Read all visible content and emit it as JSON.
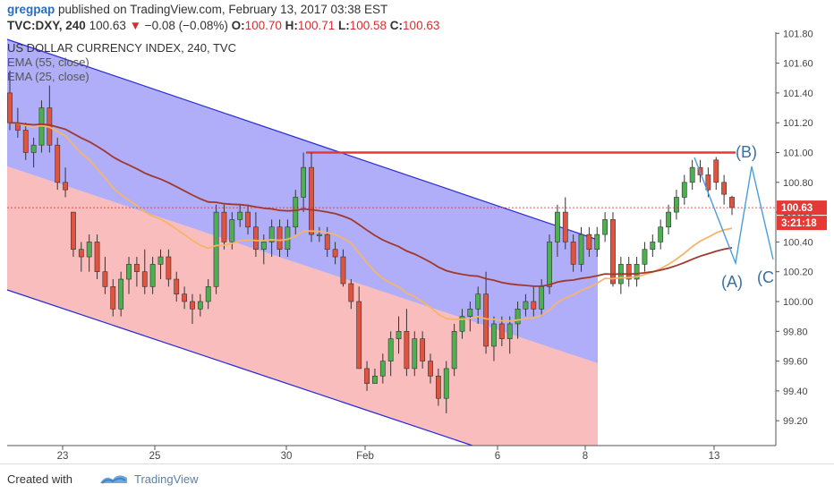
{
  "header": {
    "author": "gregpap",
    "published": "published on TradingView.com, February 13, 2017 03:38 EST",
    "symbol": "TVC:DXY, 240",
    "last": "100.63",
    "change": "−0.08 (−0.08%)",
    "o_label": "O:",
    "o_val": "100.70",
    "h_label": "H:",
    "h_val": "100.71",
    "l_label": "L:",
    "l_val": "100.58",
    "c_label": "C:",
    "c_val": "100.63"
  },
  "legend": {
    "title": "US DOLLAR CURRENCY INDEX, 240, TVC",
    "ema55": "EMA (55, close)",
    "ema25": "EMA (25, close)"
  },
  "footer": {
    "created": "Created with",
    "brand": "TradingView"
  },
  "colors": {
    "up": "#4caf50",
    "down": "#e0533f",
    "ema55": "#a0382e",
    "ema25": "#f5b46b",
    "channel_blue": "#8f8cf5",
    "channel_red": "#f7a1a1",
    "resistance": "#e53935",
    "wave": "#4a9ed8"
  },
  "chart_data": {
    "type": "candlestick",
    "title": "US DOLLAR CURRENCY INDEX, 240, TVC",
    "ylim": [
      99.0,
      101.8
    ],
    "y_ticks": [
      "101.80",
      "101.60",
      "101.40",
      "101.20",
      "101.00",
      "100.80",
      "100.60",
      "100.40",
      "100.20",
      "100.00",
      "99.80",
      "99.60",
      "99.40",
      "99.20"
    ],
    "x_ticks": [
      "23",
      "25",
      "30",
      "Feb",
      "6",
      "8",
      "13"
    ],
    "price_label": "100.63",
    "countdown_label": "3:21:18",
    "ema_legend": [
      "EMA (55, close)",
      "EMA (25, close)"
    ],
    "resistance_level": 101.0,
    "annotations": [
      "(B)",
      "(A)",
      "(C"
    ],
    "candles": [
      [
        101.4,
        101.55,
        101.15,
        101.2
      ],
      [
        101.2,
        101.3,
        101.1,
        101.15
      ],
      [
        101.15,
        101.2,
        100.95,
        101.0
      ],
      [
        101.0,
        101.1,
        100.9,
        101.05
      ],
      [
        101.05,
        101.35,
        101.0,
        101.3
      ],
      [
        101.3,
        101.45,
        101.0,
        101.05
      ],
      [
        101.05,
        101.1,
        100.75,
        100.8
      ],
      [
        100.8,
        100.9,
        100.7,
        100.75
      ],
      [
        100.6,
        100.6,
        100.3,
        100.35
      ],
      [
        100.35,
        100.4,
        100.2,
        100.3
      ],
      [
        100.3,
        100.45,
        100.2,
        100.4
      ],
      [
        100.4,
        100.45,
        100.15,
        100.2
      ],
      [
        100.2,
        100.3,
        100.05,
        100.1
      ],
      [
        100.1,
        100.15,
        99.9,
        99.95
      ],
      [
        99.95,
        100.2,
        99.9,
        100.15
      ],
      [
        100.15,
        100.3,
        100.05,
        100.25
      ],
      [
        100.25,
        100.3,
        100.1,
        100.2
      ],
      [
        100.2,
        100.35,
        100.05,
        100.1
      ],
      [
        100.1,
        100.3,
        100.05,
        100.25
      ],
      [
        100.25,
        100.35,
        100.15,
        100.3
      ],
      [
        100.3,
        100.35,
        100.1,
        100.15
      ],
      [
        100.15,
        100.2,
        100.0,
        100.05
      ],
      [
        100.05,
        100.1,
        99.95,
        100.0
      ],
      [
        100.0,
        100.05,
        99.85,
        99.95
      ],
      [
        99.95,
        100.05,
        99.9,
        100.0
      ],
      [
        100.0,
        100.15,
        99.95,
        100.1
      ],
      [
        100.1,
        100.65,
        100.05,
        100.6
      ],
      [
        100.6,
        100.65,
        100.35,
        100.4
      ],
      [
        100.4,
        100.6,
        100.35,
        100.55
      ],
      [
        100.55,
        100.65,
        100.5,
        100.6
      ],
      [
        100.6,
        100.65,
        100.45,
        100.5
      ],
      [
        100.5,
        100.6,
        100.3,
        100.35
      ],
      [
        100.35,
        100.45,
        100.25,
        100.4
      ],
      [
        100.4,
        100.55,
        100.3,
        100.5
      ],
      [
        100.5,
        100.55,
        100.3,
        100.35
      ],
      [
        100.35,
        100.55,
        100.3,
        100.5
      ],
      [
        100.5,
        100.75,
        100.45,
        100.7
      ],
      [
        100.7,
        101.0,
        100.6,
        100.9
      ],
      [
        100.9,
        101.0,
        100.4,
        100.45
      ],
      [
        100.45,
        100.5,
        100.4,
        100.45
      ],
      [
        100.45,
        100.5,
        100.3,
        100.35
      ],
      [
        100.35,
        100.4,
        100.25,
        100.3
      ],
      [
        100.3,
        100.35,
        100.1,
        100.12
      ],
      [
        100.12,
        100.15,
        99.95,
        100.0
      ],
      [
        100.0,
        100.1,
        99.55,
        99.55
      ],
      [
        99.55,
        99.6,
        99.4,
        99.45
      ],
      [
        99.45,
        99.55,
        99.45,
        99.5
      ],
      [
        99.5,
        99.65,
        99.45,
        99.6
      ],
      [
        99.6,
        99.8,
        99.5,
        99.75
      ],
      [
        99.75,
        99.9,
        99.65,
        99.8
      ],
      [
        99.8,
        99.95,
        99.5,
        99.55
      ],
      [
        99.55,
        99.8,
        99.5,
        99.75
      ],
      [
        99.75,
        99.8,
        99.55,
        99.6
      ],
      [
        99.6,
        99.65,
        99.45,
        99.5
      ],
      [
        99.5,
        99.55,
        99.3,
        99.35
      ],
      [
        99.35,
        99.6,
        99.25,
        99.55
      ],
      [
        99.55,
        99.85,
        99.5,
        99.8
      ],
      [
        99.8,
        99.95,
        99.75,
        99.9
      ],
      [
        99.9,
        100.0,
        99.8,
        99.95
      ],
      [
        99.95,
        100.1,
        99.85,
        100.05
      ],
      [
        100.05,
        100.2,
        99.65,
        99.7
      ],
      [
        99.7,
        99.9,
        99.6,
        99.85
      ],
      [
        99.85,
        99.9,
        99.7,
        99.75
      ],
      [
        99.75,
        99.9,
        99.65,
        99.85
      ],
      [
        99.85,
        100.0,
        99.75,
        99.95
      ],
      [
        99.95,
        100.05,
        99.9,
        100.0
      ],
      [
        100.0,
        100.1,
        99.9,
        99.95
      ],
      [
        99.95,
        100.15,
        99.9,
        100.1
      ],
      [
        100.1,
        100.45,
        100.05,
        100.4
      ],
      [
        100.4,
        100.65,
        100.3,
        100.6
      ],
      [
        100.6,
        100.7,
        100.35,
        100.4
      ],
      [
        100.4,
        100.45,
        100.2,
        100.25
      ],
      [
        100.25,
        100.5,
        100.2,
        100.45
      ],
      [
        100.45,
        100.5,
        100.3,
        100.35
      ],
      [
        100.35,
        100.5,
        100.3,
        100.45
      ],
      [
        100.45,
        100.6,
        100.4,
        100.55
      ],
      [
        100.55,
        100.6,
        100.1,
        100.12
      ],
      [
        100.12,
        100.3,
        100.05,
        100.25
      ],
      [
        100.25,
        100.3,
        100.1,
        100.15
      ],
      [
        100.15,
        100.3,
        100.1,
        100.25
      ],
      [
        100.25,
        100.4,
        100.2,
        100.35
      ],
      [
        100.35,
        100.45,
        100.3,
        100.4
      ],
      [
        100.4,
        100.55,
        100.35,
        100.5
      ],
      [
        100.5,
        100.65,
        100.45,
        100.6
      ],
      [
        100.6,
        100.75,
        100.55,
        100.7
      ],
      [
        100.7,
        100.85,
        100.65,
        100.8
      ],
      [
        100.8,
        100.95,
        100.75,
        100.9
      ],
      [
        100.9,
        100.95,
        100.8,
        100.85
      ],
      [
        100.85,
        100.9,
        100.7,
        100.75
      ],
      [
        100.95,
        100.97,
        100.75,
        100.8
      ],
      [
        100.8,
        100.85,
        100.65,
        100.72
      ],
      [
        100.7,
        100.71,
        100.58,
        100.63
      ]
    ]
  }
}
